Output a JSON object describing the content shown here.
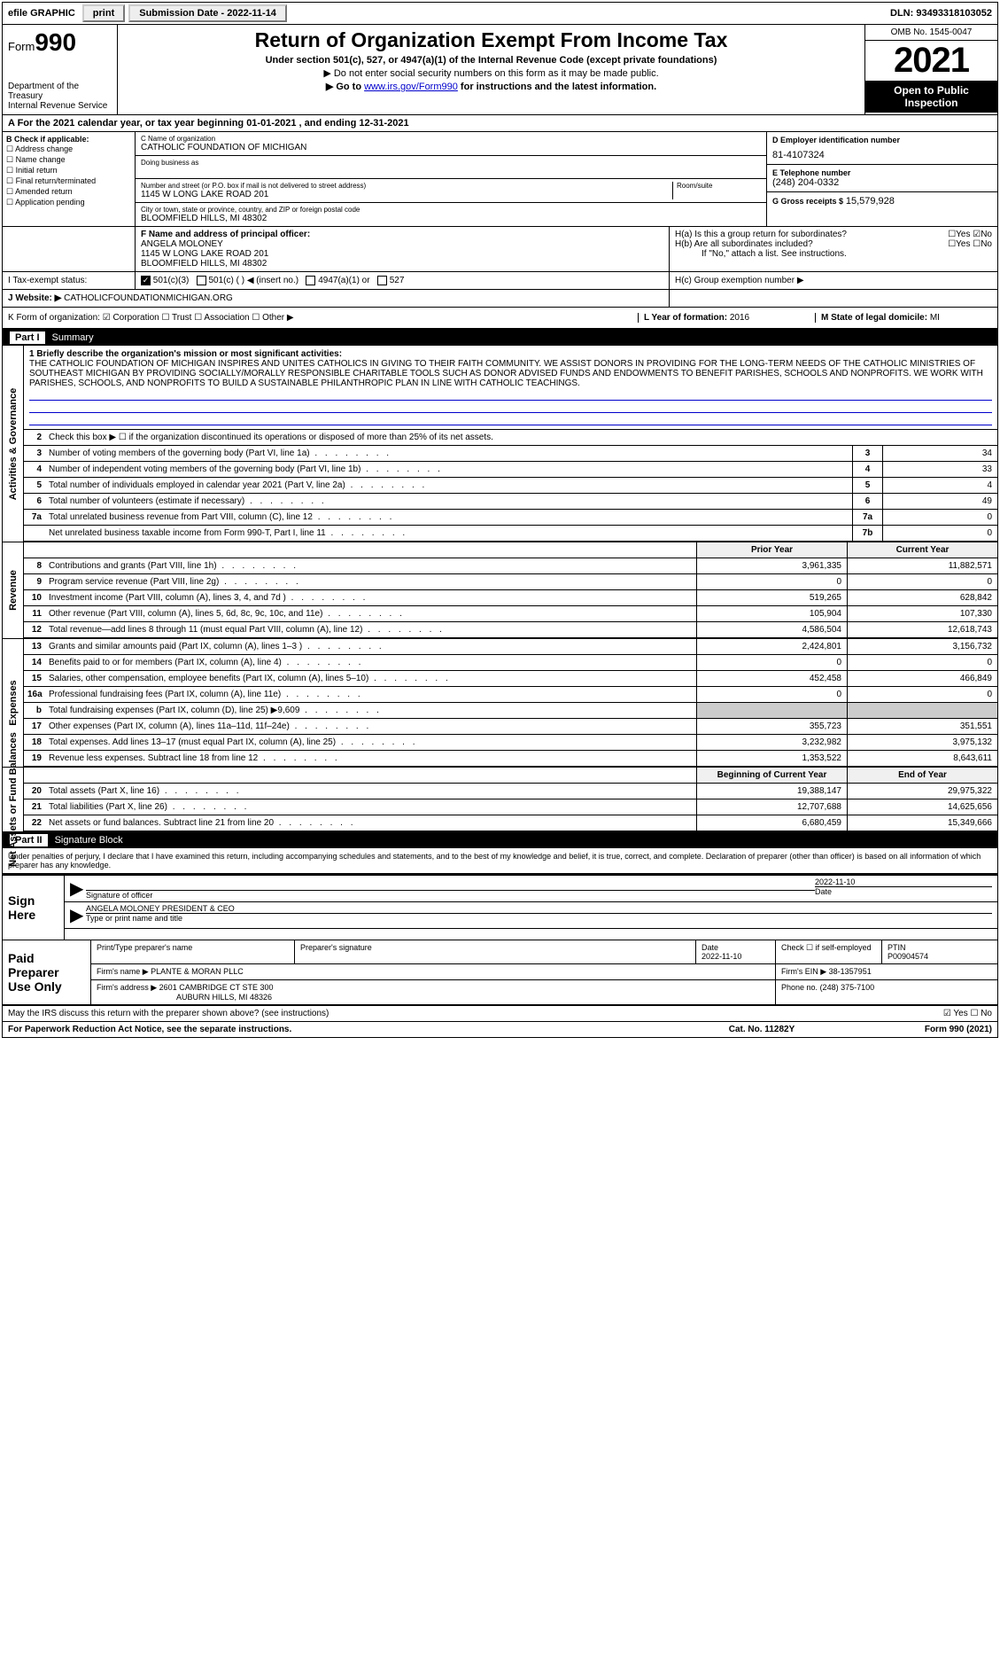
{
  "topbar": {
    "efile": "efile GRAPHIC",
    "print": "print",
    "submission": "Submission Date - 2022-11-14",
    "dln": "DLN: 93493318103052"
  },
  "header": {
    "form_prefix": "Form",
    "form_no": "990",
    "dept": "Department of the Treasury",
    "irs": "Internal Revenue Service",
    "title": "Return of Organization Exempt From Income Tax",
    "sub": "Under section 501(c), 527, or 4947(a)(1) of the Internal Revenue Code (except private foundations)",
    "sub2a": "▶ Do not enter social security numbers on this form as it may be made public.",
    "sub2b": "▶ Go to ",
    "sub2b_link": "www.irs.gov/Form990",
    "sub2b_tail": " for instructions and the latest information.",
    "omb": "OMB No. 1545-0047",
    "year": "2021",
    "open": "Open to Public Inspection"
  },
  "period": "A For the 2021 calendar year, or tax year beginning 01-01-2021   , and ending 12-31-2021",
  "entity": {
    "b_label": "B Check if applicable:",
    "b_items": [
      "Address change",
      "Name change",
      "Initial return",
      "Final return/terminated",
      "Amended return",
      "Application pending"
    ],
    "c_name_lbl": "C Name of organization",
    "c_name": "CATHOLIC FOUNDATION OF MICHIGAN",
    "dba_lbl": "Doing business as",
    "dba": "",
    "addr_lbl": "Number and street (or P.O. box if mail is not delivered to street address)",
    "addr": "1145 W LONG LAKE ROAD 201",
    "room_lbl": "Room/suite",
    "city_lbl": "City or town, state or province, country, and ZIP or foreign postal code",
    "city": "BLOOMFIELD HILLS, MI  48302",
    "d_lbl": "D Employer identification number",
    "d_val": "81-4107324",
    "e_lbl": "E Telephone number",
    "e_val": "(248) 204-0332",
    "g_lbl": "G Gross receipts $",
    "g_val": "15,579,928"
  },
  "fh": {
    "f_lbl": "F Name and address of principal officer:",
    "f_name": "ANGELA MOLONEY",
    "f_addr1": "1145 W LONG LAKE ROAD 201",
    "f_addr2": "BLOOMFIELD HILLS, MI  48302",
    "ha": "H(a)  Is this a group return for subordinates?",
    "ha_ans": "☐Yes ☑No",
    "hb": "H(b)  Are all subordinates included?",
    "hb_ans": "☐Yes ☐No",
    "hb_note": "If \"No,\" attach a list. See instructions."
  },
  "i_row": {
    "i_lbl": "I Tax-exempt status:",
    "opt1": "501(c)(3)",
    "opt2": "501(c) (  ) ◀ (insert no.)",
    "opt3": "4947(a)(1) or",
    "opt4": "527",
    "hc": "H(c)  Group exemption number ▶"
  },
  "j_row": {
    "j_lbl": "J Website: ▶",
    "j_val": "CATHOLICFOUNDATIONMICHIGAN.ORG"
  },
  "klm": {
    "k": "K Form of organization:  ☑ Corporation ☐ Trust ☐ Association ☐ Other ▶",
    "l_lbl": "L Year of formation:",
    "l_val": "2016",
    "m_lbl": "M State of legal domicile:",
    "m_val": "MI"
  },
  "part1": {
    "hdr": "Summary",
    "mission_lbl": "1   Briefly describe the organization's mission or most significant activities:",
    "mission": "THE CATHOLIC FOUNDATION OF MICHIGAN INSPIRES AND UNITES CATHOLICS IN GIVING TO THEIR FAITH COMMUNITY. WE ASSIST DONORS IN PROVIDING FOR THE LONG-TERM NEEDS OF THE CATHOLIC MINISTRIES OF SOUTHEAST MICHIGAN BY PROVIDING SOCIALLY/MORALLY RESPONSIBLE CHARITABLE TOOLS SUCH AS DONOR ADVISED FUNDS AND ENDOWMENTS TO BENEFIT PARISHES, SCHOOLS AND NONPROFITS. WE WORK WITH PARISHES, SCHOOLS, AND NONPROFITS TO BUILD A SUSTAINABLE PHILANTHROPIC PLAN IN LINE WITH CATHOLIC TEACHINGS.",
    "line2": "Check this box ▶ ☐ if the organization discontinued its operations or disposed of more than 25% of its net assets.",
    "gov_rows": [
      {
        "n": "3",
        "d": "Number of voting members of the governing body (Part VI, line 1a)",
        "c": "3",
        "v": "34"
      },
      {
        "n": "4",
        "d": "Number of independent voting members of the governing body (Part VI, line 1b)",
        "c": "4",
        "v": "33"
      },
      {
        "n": "5",
        "d": "Total number of individuals employed in calendar year 2021 (Part V, line 2a)",
        "c": "5",
        "v": "4"
      },
      {
        "n": "6",
        "d": "Total number of volunteers (estimate if necessary)",
        "c": "6",
        "v": "49"
      },
      {
        "n": "7a",
        "d": "Total unrelated business revenue from Part VIII, column (C), line 12",
        "c": "7a",
        "v": "0"
      },
      {
        "n": "",
        "d": "Net unrelated business taxable income from Form 990-T, Part I, line 11",
        "c": "7b",
        "v": "0"
      }
    ],
    "col_prior": "Prior Year",
    "col_curr": "Current Year",
    "rev_rows": [
      {
        "n": "8",
        "d": "Contributions and grants (Part VIII, line 1h)",
        "p": "3,961,335",
        "c": "11,882,571"
      },
      {
        "n": "9",
        "d": "Program service revenue (Part VIII, line 2g)",
        "p": "0",
        "c": "0"
      },
      {
        "n": "10",
        "d": "Investment income (Part VIII, column (A), lines 3, 4, and 7d )",
        "p": "519,265",
        "c": "628,842"
      },
      {
        "n": "11",
        "d": "Other revenue (Part VIII, column (A), lines 5, 6d, 8c, 9c, 10c, and 11e)",
        "p": "105,904",
        "c": "107,330"
      },
      {
        "n": "12",
        "d": "Total revenue—add lines 8 through 11 (must equal Part VIII, column (A), line 12)",
        "p": "4,586,504",
        "c": "12,618,743"
      }
    ],
    "exp_rows": [
      {
        "n": "13",
        "d": "Grants and similar amounts paid (Part IX, column (A), lines 1–3 )",
        "p": "2,424,801",
        "c": "3,156,732"
      },
      {
        "n": "14",
        "d": "Benefits paid to or for members (Part IX, column (A), line 4)",
        "p": "0",
        "c": "0"
      },
      {
        "n": "15",
        "d": "Salaries, other compensation, employee benefits (Part IX, column (A), lines 5–10)",
        "p": "452,458",
        "c": "466,849"
      },
      {
        "n": "16a",
        "d": "Professional fundraising fees (Part IX, column (A), line 11e)",
        "p": "0",
        "c": "0"
      },
      {
        "n": "b",
        "d": "Total fundraising expenses (Part IX, column (D), line 25) ▶9,609",
        "p": "",
        "c": "",
        "shade": true
      },
      {
        "n": "17",
        "d": "Other expenses (Part IX, column (A), lines 11a–11d, 11f–24e)",
        "p": "355,723",
        "c": "351,551"
      },
      {
        "n": "18",
        "d": "Total expenses. Add lines 13–17 (must equal Part IX, column (A), line 25)",
        "p": "3,232,982",
        "c": "3,975,132"
      },
      {
        "n": "19",
        "d": "Revenue less expenses. Subtract line 18 from line 12",
        "p": "1,353,522",
        "c": "8,643,611"
      }
    ],
    "col_boy": "Beginning of Current Year",
    "col_eoy": "End of Year",
    "na_rows": [
      {
        "n": "20",
        "d": "Total assets (Part X, line 16)",
        "p": "19,388,147",
        "c": "29,975,322"
      },
      {
        "n": "21",
        "d": "Total liabilities (Part X, line 26)",
        "p": "12,707,688",
        "c": "14,625,656"
      },
      {
        "n": "22",
        "d": "Net assets or fund balances. Subtract line 21 from line 20",
        "p": "6,680,459",
        "c": "15,349,666"
      }
    ],
    "side_gov": "Activities & Governance",
    "side_rev": "Revenue",
    "side_exp": "Expenses",
    "side_na": "Net Assets or Fund Balances"
  },
  "part2": {
    "hdr": "Signature Block",
    "penalties": "Under penalties of perjury, I declare that I have examined this return, including accompanying schedules and statements, and to the best of my knowledge and belief, it is true, correct, and complete. Declaration of preparer (other than officer) is based on all information of which preparer has any knowledge.",
    "sign_here": "Sign Here",
    "sig_officer_lbl": "Signature of officer",
    "sig_date": "2022-11-10",
    "sig_date_lbl": "Date",
    "officer_name": "ANGELA MOLONEY PRESIDENT & CEO",
    "officer_name_lbl": "Type or print name and title",
    "paid_prep": "Paid Preparer Use Only",
    "prep_name_lbl": "Print/Type preparer's name",
    "prep_sig_lbl": "Preparer's signature",
    "prep_date_lbl": "Date",
    "prep_date": "2022-11-10",
    "prep_chk": "Check ☐ if self-employed",
    "ptin_lbl": "PTIN",
    "ptin": "P00904574",
    "firm_name_lbl": "Firm's name    ▶",
    "firm_name": "PLANTE & MORAN PLLC",
    "firm_ein_lbl": "Firm's EIN ▶",
    "firm_ein": "38-1357951",
    "firm_addr_lbl": "Firm's address ▶",
    "firm_addr1": "2601 CAMBRIDGE CT STE 300",
    "firm_addr2": "AUBURN HILLS, MI  48326",
    "firm_phone_lbl": "Phone no.",
    "firm_phone": "(248) 375-7100",
    "discuss": "May the IRS discuss this return with the preparer shown above? (see instructions)",
    "discuss_ans": "☑ Yes ☐ No"
  },
  "footer": {
    "pra": "For Paperwork Reduction Act Notice, see the separate instructions.",
    "cat": "Cat. No. 11282Y",
    "form": "Form 990 (2021)"
  }
}
